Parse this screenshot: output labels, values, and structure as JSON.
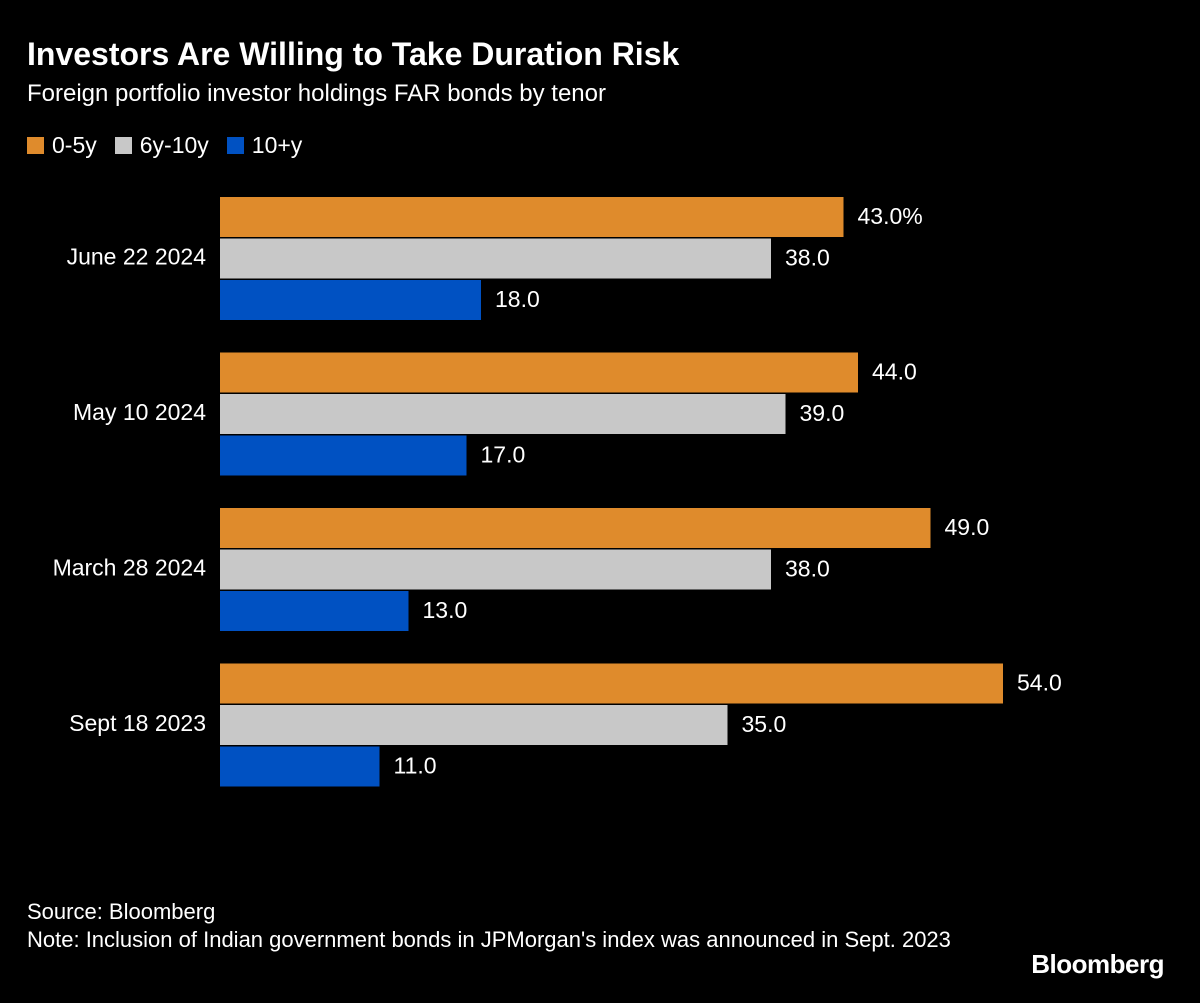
{
  "chart_data": {
    "type": "bar",
    "orientation": "horizontal",
    "title": "Investors Are Willing to Take Duration Risk",
    "subtitle": "Foreign portfolio investor holdings FAR bonds by tenor",
    "categories": [
      "June 22 2024",
      "May 10 2024",
      "March 28 2024",
      "Sept 18 2023"
    ],
    "series": [
      {
        "name": "0-5y",
        "color": "#df8b2c",
        "values": [
          43,
          44,
          49,
          54
        ],
        "value_labels": [
          "43.0%",
          "44.0",
          "49.0",
          "54.0"
        ]
      },
      {
        "name": "6y-10y",
        "color": "#c8c8c8",
        "values": [
          38,
          39,
          38,
          35
        ],
        "value_labels": [
          "38.0",
          "39.0",
          "38.0",
          "35.0"
        ]
      },
      {
        "name": "10+y",
        "color": "#0051c2",
        "values": [
          18,
          17,
          13,
          11
        ],
        "value_labels": [
          "18.0",
          "17.0",
          "13.0",
          "11.0"
        ]
      }
    ],
    "legend": "top-left",
    "source": "Source: Bloomberg",
    "note": "Note: Inclusion of Indian government bonds in JPMorgan's index was announced in Sept. 2023",
    "brand": "Bloomberg"
  }
}
